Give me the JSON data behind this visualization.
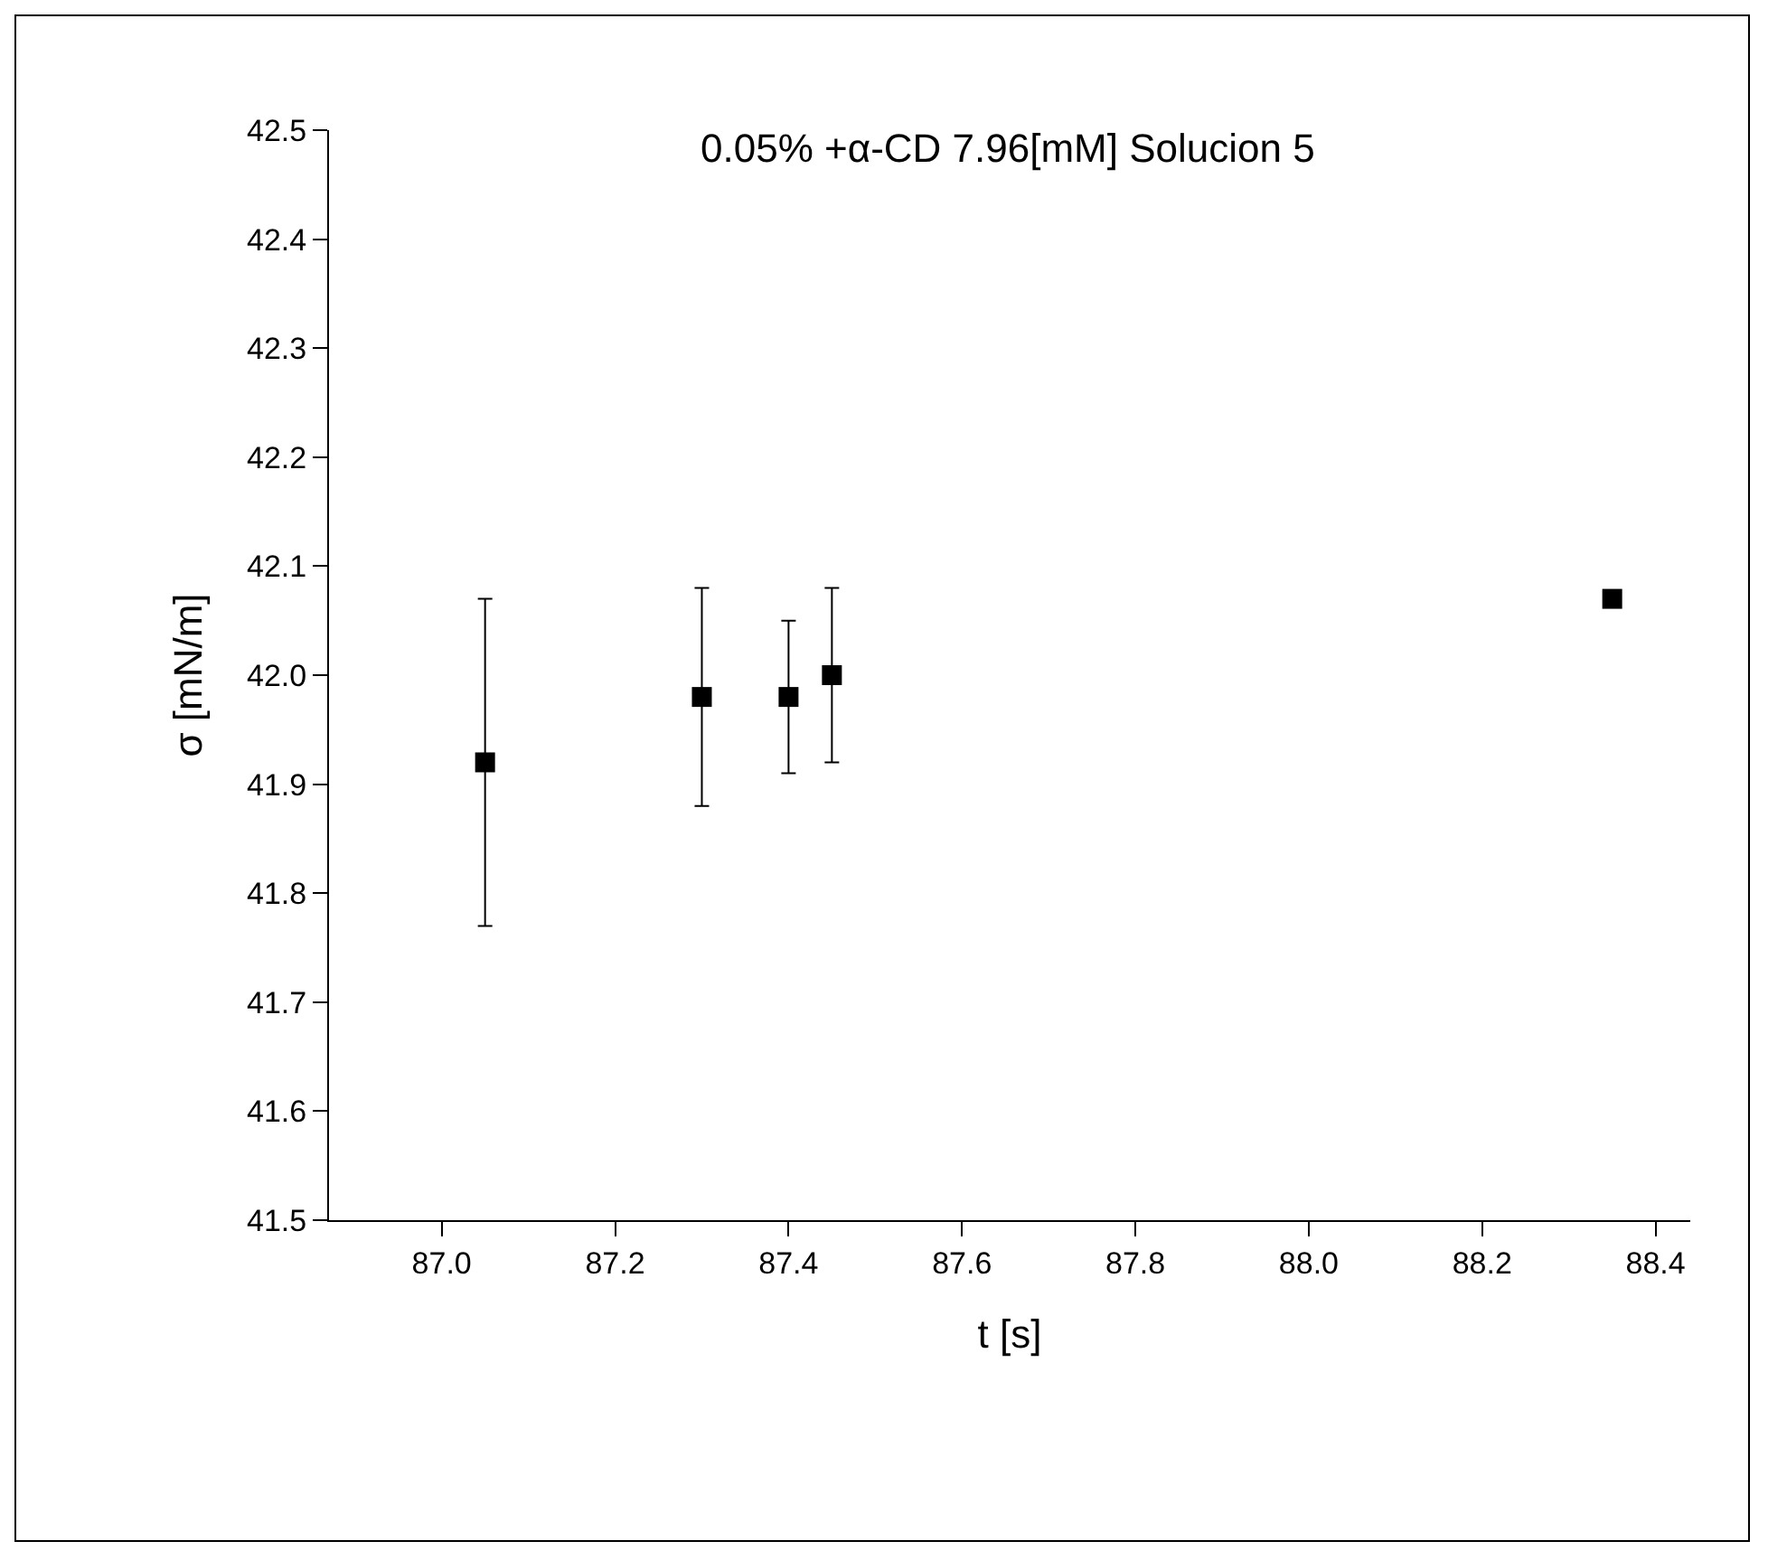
{
  "chart_data": {
    "type": "scatter",
    "title": "0.05% +α-CD 7.96[mM] Solucion 5",
    "xlabel": "t [s]",
    "ylabel": "σ [mN/m]",
    "x": [
      87.05,
      87.3,
      87.4,
      87.45,
      88.35
    ],
    "values": [
      41.92,
      41.98,
      41.98,
      42.0,
      42.07
    ],
    "errors": [
      0.15,
      0.1,
      0.07,
      0.08,
      null
    ],
    "color": "#000000",
    "marker": "square",
    "xlim": [
      86.87,
      88.44
    ],
    "xticks": [
      {
        "value": 87,
        "label": "87.0"
      },
      87.2,
      87.4,
      87.6,
      87.8,
      {
        "value": 88,
        "label": "88.0"
      },
      88.2,
      88.4
    ],
    "ylim": [
      41.5,
      42.5
    ],
    "yticks": [
      41.5,
      41.6,
      41.7,
      41.8,
      41.9,
      {
        "value": 42,
        "label": "42.0"
      },
      42.1,
      42.2,
      42.3,
      42.4,
      42.5
    ],
    "grid": false,
    "legend": false
  }
}
